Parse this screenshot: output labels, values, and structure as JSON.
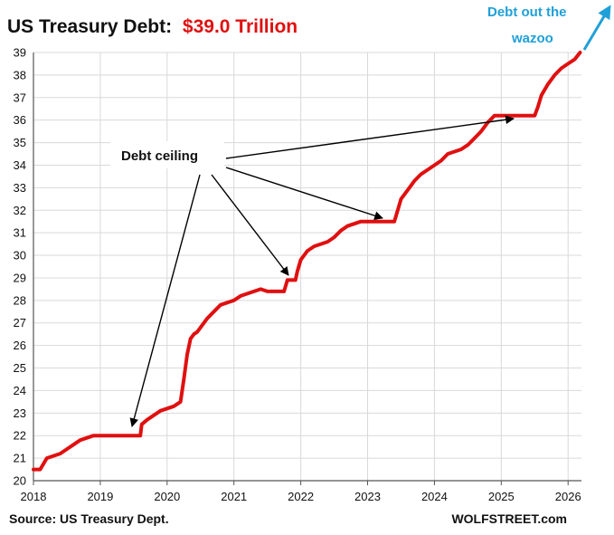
{
  "header": {
    "title_prefix": "US Treasury Debt:",
    "title_value": "$39.0 Trillion",
    "title_value_color": "#e01010"
  },
  "annotations": {
    "debt_ceiling": "Debt ceiling",
    "wazoo_line1": "Debt out the",
    "wazoo_line2": "wazoo",
    "wazoo_color": "#1fa0d8"
  },
  "footer": {
    "source": "Source: US Treasury Dept.",
    "site": "WOLFSTREET.com"
  },
  "chart_data": {
    "type": "line",
    "title": "US Treasury Debt: $39.0 Trillion",
    "xlabel": "",
    "ylabel": "",
    "xlim": [
      2018,
      2026.2
    ],
    "ylim": [
      20,
      39
    ],
    "x_ticks": [
      "2018",
      "2019",
      "2020",
      "2021",
      "2022",
      "2023",
      "2024",
      "2025",
      "2026"
    ],
    "y_ticks": [
      "20",
      "21",
      "22",
      "23",
      "24",
      "25",
      "26",
      "27",
      "28",
      "29",
      "30",
      "31",
      "32",
      "33",
      "34",
      "35",
      "36",
      "37",
      "38",
      "39"
    ],
    "grid": true,
    "series_color": "#e01010",
    "series": [
      {
        "x": [
          2018.0,
          2018.1,
          2018.2,
          2018.3,
          2018.4,
          2018.5,
          2018.6,
          2018.7,
          2018.8,
          2018.9,
          2019.0,
          2019.1,
          2019.15,
          2019.6,
          2019.62,
          2019.7,
          2019.8,
          2019.9,
          2020.0,
          2020.1,
          2020.2,
          2020.25,
          2020.3,
          2020.35,
          2020.4,
          2020.45,
          2020.5,
          2020.6,
          2020.7,
          2020.8,
          2020.9,
          2021.0,
          2021.1,
          2021.2,
          2021.3,
          2021.4,
          2021.5,
          2021.55,
          2021.6,
          2021.75,
          2021.8,
          2021.92,
          2021.95,
          2022.0,
          2022.1,
          2022.2,
          2022.3,
          2022.4,
          2022.5,
          2022.6,
          2022.7,
          2022.8,
          2022.9,
          2023.0,
          2023.05,
          2023.4,
          2023.45,
          2023.5,
          2023.6,
          2023.7,
          2023.8,
          2023.9,
          2024.0,
          2024.1,
          2024.2,
          2024.3,
          2024.4,
          2024.5,
          2024.6,
          2024.7,
          2024.8,
          2024.9,
          2025.0,
          2025.5,
          2025.55,
          2025.6,
          2025.7,
          2025.8,
          2025.9,
          2026.0,
          2026.1,
          2026.18
        ],
        "y": [
          20.5,
          20.5,
          21.0,
          21.1,
          21.2,
          21.4,
          21.6,
          21.8,
          21.9,
          22.0,
          22.0,
          22.0,
          22.0,
          22.0,
          22.5,
          22.7,
          22.9,
          23.1,
          23.2,
          23.3,
          23.5,
          24.5,
          25.6,
          26.3,
          26.5,
          26.6,
          26.8,
          27.2,
          27.5,
          27.8,
          27.9,
          28.0,
          28.2,
          28.3,
          28.4,
          28.5,
          28.4,
          28.4,
          28.4,
          28.4,
          28.9,
          28.9,
          29.3,
          29.8,
          30.2,
          30.4,
          30.5,
          30.6,
          30.8,
          31.1,
          31.3,
          31.4,
          31.5,
          31.5,
          31.5,
          31.5,
          32.0,
          32.5,
          32.9,
          33.3,
          33.6,
          33.8,
          34.0,
          34.2,
          34.5,
          34.6,
          34.7,
          34.9,
          35.2,
          35.5,
          35.9,
          36.2,
          36.2,
          36.2,
          36.6,
          37.1,
          37.6,
          38.0,
          38.3,
          38.5,
          38.7,
          39.0
        ]
      }
    ]
  }
}
